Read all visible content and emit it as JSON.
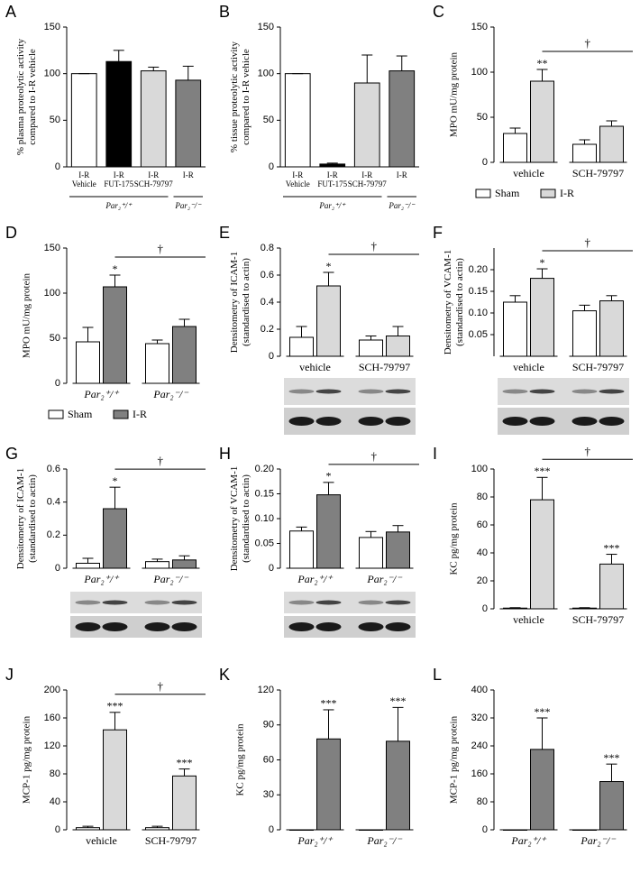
{
  "chart_data": [
    {
      "type": "bar",
      "label": "A",
      "ylabel": [
        "% plasma proteolytic activity",
        "compared to I-R vehicle"
      ],
      "ylim": [
        0,
        150
      ],
      "yticks": [
        0,
        50,
        100,
        150
      ],
      "groups": [
        {
          "name": "Par₂⁺/⁺",
          "categories": [
            [
              "I-R",
              "Vehicle"
            ],
            [
              "I-R",
              "FUT-175"
            ],
            [
              "I-R",
              "SCH-79797"
            ]
          ],
          "values": [
            100,
            113,
            103
          ],
          "errors": [
            0,
            12,
            4
          ],
          "colors": [
            "#ffffff",
            "#000000",
            "#d9d9d9"
          ]
        },
        {
          "name": "Par₂⁻/⁻",
          "categories": [
            [
              "I-R"
            ]
          ],
          "values": [
            93
          ],
          "errors": [
            15
          ],
          "colors": [
            "#808080"
          ]
        }
      ]
    },
    {
      "type": "bar",
      "label": "B",
      "ylabel": [
        "% tissue proteolytic activity",
        "compared to I-R vehicle"
      ],
      "ylim": [
        0,
        150
      ],
      "yticks": [
        0,
        50,
        100,
        150
      ],
      "groups": [
        {
          "name": "Par₂⁺/⁺",
          "categories": [
            [
              "I-R",
              "Vehicle"
            ],
            [
              "I-R",
              "FUT-175"
            ],
            [
              "I-R",
              "SCH-79797"
            ]
          ],
          "values": [
            100,
            3,
            90
          ],
          "errors": [
            0,
            1,
            30
          ],
          "colors": [
            "#ffffff",
            "#000000",
            "#d9d9d9"
          ]
        },
        {
          "name": "Par₂⁻/⁻",
          "categories": [
            [
              "I-R"
            ]
          ],
          "values": [
            103
          ],
          "errors": [
            16
          ],
          "colors": [
            "#808080"
          ]
        }
      ]
    },
    {
      "type": "grouped_bar",
      "label": "C",
      "ylabel": [
        "MPO mU/mg protein"
      ],
      "ylim": [
        0,
        150
      ],
      "yticks": [
        0,
        50,
        100,
        150
      ],
      "categories": [
        "vehicle",
        "SCH-79797"
      ],
      "series": [
        {
          "name": "Sham",
          "color": "#ffffff",
          "values": [
            32,
            20
          ],
          "errors": [
            6,
            5
          ]
        },
        {
          "name": "I-R",
          "color": "#d9d9d9",
          "values": [
            90,
            40
          ],
          "errors": [
            13,
            6
          ],
          "markers": [
            "**",
            null
          ]
        }
      ],
      "bracket_label": "†",
      "legend": "bottom"
    },
    {
      "type": "grouped_bar",
      "label": "D",
      "ylabel": [
        "MPO mU/mg protein"
      ],
      "ylim": [
        0,
        150
      ],
      "yticks": [
        0,
        50,
        100,
        150
      ],
      "categories": [
        "Par₂⁺/⁺",
        "Par₂⁻/⁻"
      ],
      "italic_categories": true,
      "series": [
        {
          "name": "Sham",
          "color": "#ffffff",
          "values": [
            46,
            44
          ],
          "errors": [
            16,
            4
          ]
        },
        {
          "name": "I-R",
          "color": "#808080",
          "values": [
            107,
            63
          ],
          "errors": [
            13,
            8
          ],
          "markers": [
            "*",
            null
          ]
        }
      ],
      "bracket_label": "†",
      "legend": "bottom"
    },
    {
      "type": "grouped_bar",
      "label": "E",
      "ylabel": [
        "Densitometry of ICAM-1",
        "(standardised to actin)"
      ],
      "ylim": [
        0,
        0.8
      ],
      "yticks": [
        0,
        0.2,
        0.4,
        0.6,
        0.8
      ],
      "categories": [
        "vehicle",
        "SCH-79797"
      ],
      "series": [
        {
          "color": "#ffffff",
          "values": [
            0.14,
            0.12
          ],
          "errors": [
            0.08,
            0.03
          ]
        },
        {
          "color": "#d9d9d9",
          "values": [
            0.52,
            0.15
          ],
          "errors": [
            0.1,
            0.07
          ],
          "markers": [
            "*",
            null
          ]
        }
      ],
      "bracket_label": "†"
    },
    {
      "type": "grouped_bar",
      "label": "F",
      "ylabel": [
        "Densitometry of  VCAM-1",
        "(standardised to actin)"
      ],
      "ylim": [
        0,
        0.25
      ],
      "yticks": [
        0.05,
        {
          "value": 0.1,
          "label": "0.10"
        },
        0.15,
        {
          "value": 0.2,
          "label": "0.20"
        }
      ],
      "categories": [
        "vehicle",
        "SCH-79797"
      ],
      "series": [
        {
          "color": "#ffffff",
          "values": [
            0.125,
            0.105
          ],
          "errors": [
            0.015,
            0.013
          ]
        },
        {
          "color": "#d9d9d9",
          "values": [
            0.18,
            0.128
          ],
          "errors": [
            0.022,
            0.012
          ],
          "markers": [
            "*",
            null
          ]
        }
      ],
      "bracket_label": "†"
    },
    {
      "type": "grouped_bar",
      "label": "G",
      "ylabel": [
        "Densitometry of  ICAM-1",
        "(standardised to actin)"
      ],
      "ylim": [
        0,
        0.6
      ],
      "yticks": [
        0,
        0.2,
        0.4,
        0.6
      ],
      "categories": [
        "Par₂⁺/⁺",
        "Par₂⁻/⁻"
      ],
      "italic_categories": true,
      "series": [
        {
          "color": "#ffffff",
          "values": [
            0.03,
            0.04
          ],
          "errors": [
            0.03,
            0.015
          ]
        },
        {
          "color": "#808080",
          "values": [
            0.36,
            0.05
          ],
          "errors": [
            0.13,
            0.025
          ],
          "markers": [
            "*",
            null
          ]
        }
      ],
      "bracket_label": "†"
    },
    {
      "type": "grouped_bar",
      "label": "H",
      "ylabel": [
        "Densitometry of  VCAM-1",
        "(standardised to actin)"
      ],
      "ylim": [
        0,
        0.2
      ],
      "yticks": [
        0,
        0.05,
        {
          "value": 0.1,
          "label": "0.10"
        },
        0.15,
        {
          "value": 0.2,
          "label": "0.20"
        }
      ],
      "categories": [
        "Par₂⁺/⁺",
        "Par₂⁻/⁻"
      ],
      "italic_categories": true,
      "series": [
        {
          "color": "#ffffff",
          "values": [
            0.075,
            0.062
          ],
          "errors": [
            0.008,
            0.012
          ]
        },
        {
          "color": "#808080",
          "values": [
            0.148,
            0.073
          ],
          "errors": [
            0.025,
            0.013
          ],
          "markers": [
            "*",
            null
          ]
        }
      ],
      "bracket_label": "†"
    },
    {
      "type": "grouped_bar",
      "label": "I",
      "ylabel": [
        "KC pg/mg protein"
      ],
      "ylim": [
        0,
        100
      ],
      "yticks": [
        0,
        20,
        40,
        60,
        80,
        100
      ],
      "categories": [
        "vehicle",
        "SCH-79797"
      ],
      "series": [
        {
          "color": "#ffffff",
          "values": [
            0.5,
            0.5
          ],
          "errors": [
            0.3,
            0.3
          ]
        },
        {
          "color": "#d9d9d9",
          "values": [
            78,
            32
          ],
          "errors": [
            16,
            7
          ],
          "markers": [
            "***",
            "***"
          ]
        }
      ],
      "bracket_label": "†"
    },
    {
      "type": "grouped_bar",
      "label": "J",
      "ylabel": [
        "MCP-1 pg/mg protein"
      ],
      "ylim": [
        0,
        200
      ],
      "yticks": [
        0,
        40,
        80,
        120,
        160,
        200
      ],
      "categories": [
        "vehicle",
        "SCH-79797"
      ],
      "series": [
        {
          "color": "#ffffff",
          "values": [
            3,
            3
          ],
          "errors": [
            2,
            2
          ]
        },
        {
          "color": "#d9d9d9",
          "values": [
            143,
            77
          ],
          "errors": [
            25,
            10
          ],
          "markers": [
            "***",
            "***"
          ]
        }
      ],
      "bracket_label": "†"
    },
    {
      "type": "grouped_bar",
      "label": "K",
      "ylabel": [
        "KC pg/mg protein"
      ],
      "ylim": [
        0,
        120
      ],
      "yticks": [
        0,
        30,
        60,
        90,
        120
      ],
      "categories": [
        "Par₂⁺/⁺",
        "Par₂⁻/⁻"
      ],
      "italic_categories": true,
      "series": [
        {
          "color": "#ffffff",
          "values": [
            0,
            0
          ],
          "errors": [
            0,
            0
          ]
        },
        {
          "color": "#808080",
          "values": [
            78,
            76
          ],
          "errors": [
            25,
            29
          ],
          "markers": [
            "***",
            "***"
          ]
        }
      ]
    },
    {
      "type": "grouped_bar",
      "label": "L",
      "ylabel": [
        "MCP-1 pg/mg protein"
      ],
      "ylim": [
        0,
        400
      ],
      "yticks": [
        0,
        80,
        160,
        240,
        320,
        400
      ],
      "categories": [
        "Par₂⁺/⁺",
        "Par₂⁻/⁻"
      ],
      "italic_categories": true,
      "series": [
        {
          "color": "#ffffff",
          "values": [
            0,
            0
          ],
          "errors": [
            0,
            0
          ]
        },
        {
          "color": "#808080",
          "values": [
            230,
            138
          ],
          "errors": [
            90,
            50
          ],
          "markers": [
            "***",
            "***"
          ]
        }
      ]
    }
  ]
}
